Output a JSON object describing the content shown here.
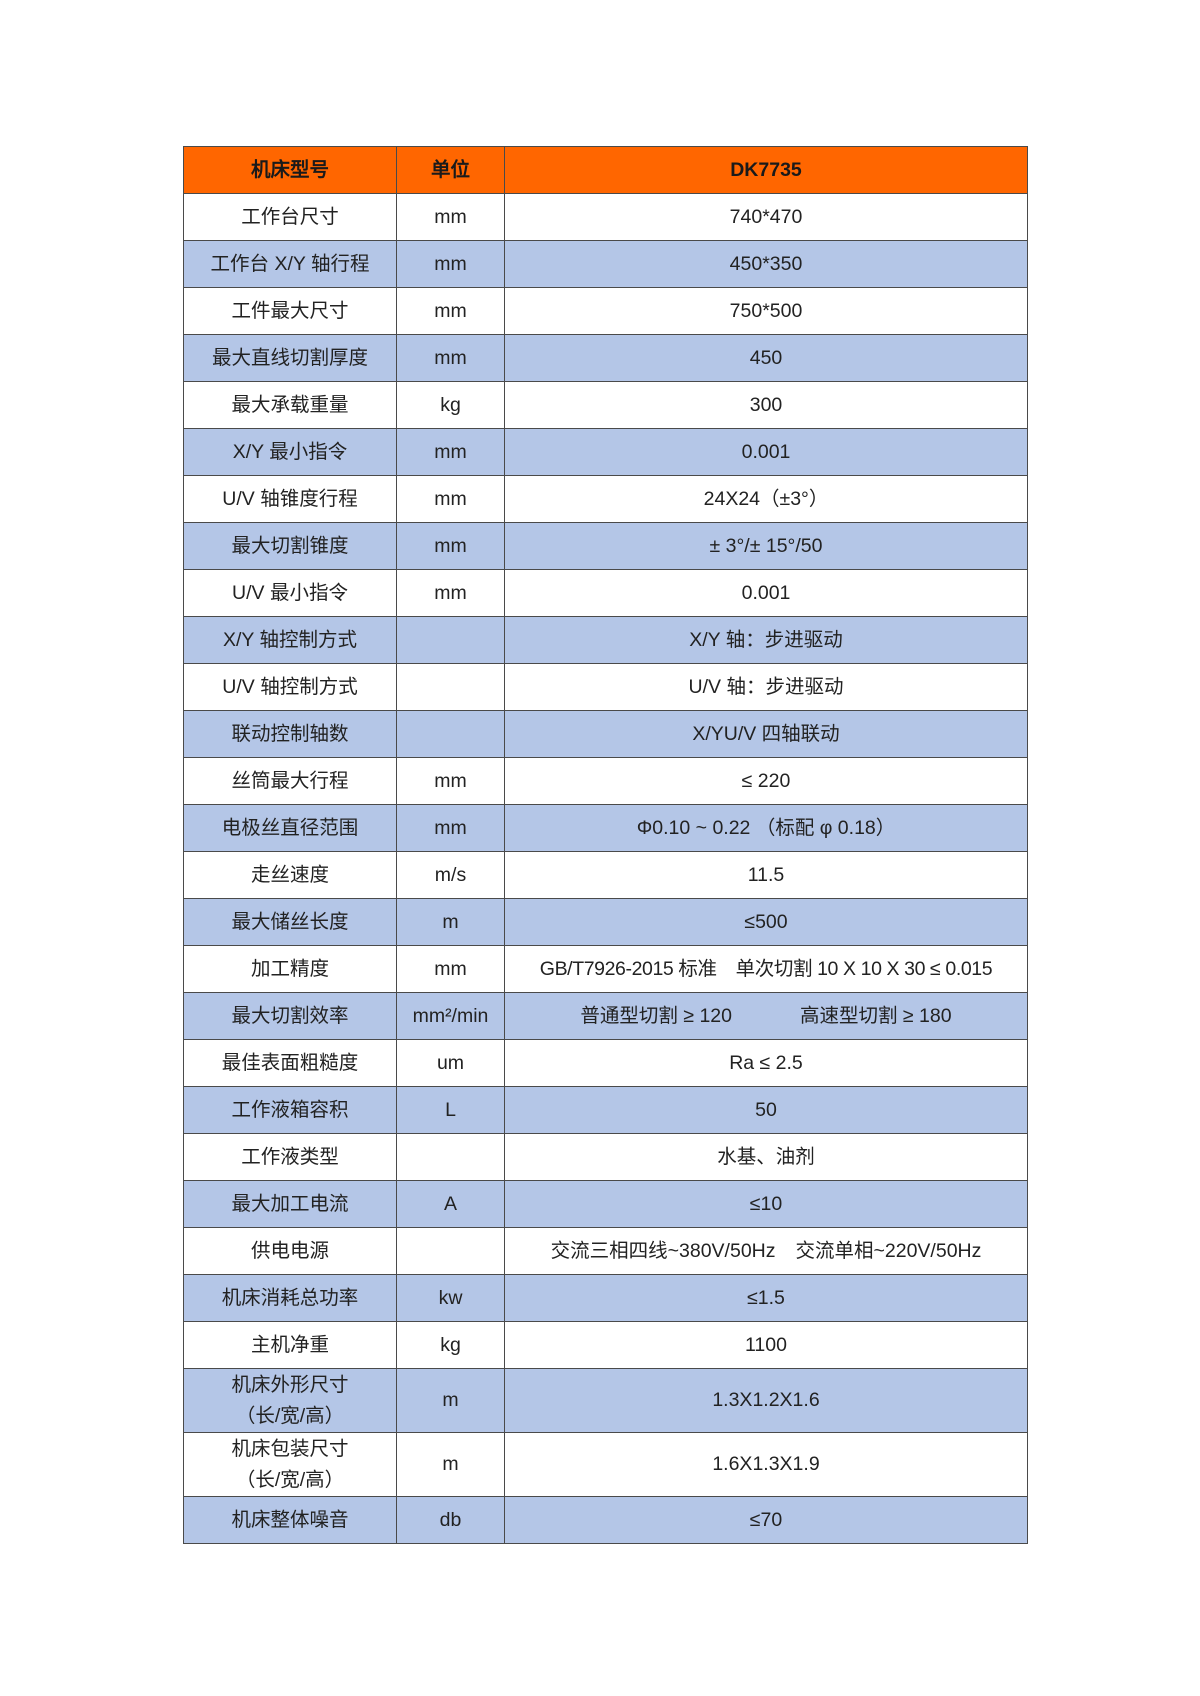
{
  "colors": {
    "header_bg": "#ff6600",
    "alt_row_bg": "#b4c6e7",
    "row_bg": "#ffffff",
    "border": "#4a4a4a"
  },
  "header": {
    "name": "机床型号",
    "unit": "单位",
    "value": "DK7735"
  },
  "rows": [
    {
      "name": "工作台尺寸",
      "unit": "mm",
      "value": "740*470"
    },
    {
      "name": "工作台 X/Y 轴行程",
      "unit": "mm",
      "value": "450*350"
    },
    {
      "name": "工件最大尺寸",
      "unit": "mm",
      "value": "750*500"
    },
    {
      "name": "最大直线切割厚度",
      "unit": "mm",
      "value": "450"
    },
    {
      "name": "最大承载重量",
      "unit": "kg",
      "value": "300"
    },
    {
      "name": "X/Y 最小指令",
      "unit": "mm",
      "value": "0.001"
    },
    {
      "name": "U/V 轴锥度行程",
      "unit": "mm",
      "value": "24X24（±3°）"
    },
    {
      "name": "最大切割锥度",
      "unit": "mm",
      "value": "± 3°/± 15°/50"
    },
    {
      "name": "U/V 最小指令",
      "unit": "mm",
      "value": "0.001"
    },
    {
      "name": "X/Y 轴控制方式",
      "unit": "",
      "value": "X/Y 轴：步进驱动"
    },
    {
      "name": "U/V 轴控制方式",
      "unit": "",
      "value": "U/V 轴：步进驱动"
    },
    {
      "name": "联动控制轴数",
      "unit": "",
      "value": "X/YU/V 四轴联动"
    },
    {
      "name": "丝筒最大行程",
      "unit": "mm",
      "value": "≤ 220"
    },
    {
      "name": "电极丝直径范围",
      "unit": "mm",
      "value": "Φ0.10 ~ 0.22 （标配 φ 0.18）"
    },
    {
      "name": "走丝速度",
      "unit": "m/s",
      "value": "11.5"
    },
    {
      "name": "最大储丝长度",
      "unit": "m",
      "value": "≤500"
    },
    {
      "name": "加工精度",
      "unit": "mm",
      "value": "GB/T7926-2015 标准　单次切割 10 X 10 X 30 ≤ 0.015"
    },
    {
      "name": "最大切割效率",
      "unit": "mm²/min",
      "value": "普通型切割 ≥ 120",
      "value2": "高速型切割 ≥ 180"
    },
    {
      "name": "最佳表面粗糙度",
      "unit": "um",
      "value": "Ra ≤ 2.5"
    },
    {
      "name": "工作液箱容积",
      "unit": "L",
      "value": "50"
    },
    {
      "name": "工作液类型",
      "unit": "",
      "value": "水基、油剂"
    },
    {
      "name": "最大加工电流",
      "unit": "A",
      "value": "≤10"
    },
    {
      "name": "供电电源",
      "unit": "",
      "value": "交流三相四线~380V/50Hz",
      "value2": "交流单相~220V/50Hz"
    },
    {
      "name": "机床消耗总功率",
      "unit": "kw",
      "value": "≤1.5"
    },
    {
      "name": "主机净重",
      "unit": "kg",
      "value": "1100"
    },
    {
      "name": "机床外形尺寸",
      "name2": "（长/宽/高）",
      "unit": "m",
      "value": "1.3X1.2X1.6"
    },
    {
      "name": "机床包装尺寸",
      "name2": "（长/宽/高）",
      "unit": "m",
      "value": "1.6X1.3X1.9"
    },
    {
      "name": "机床整体噪音",
      "unit": "db",
      "value": "≤70"
    }
  ]
}
